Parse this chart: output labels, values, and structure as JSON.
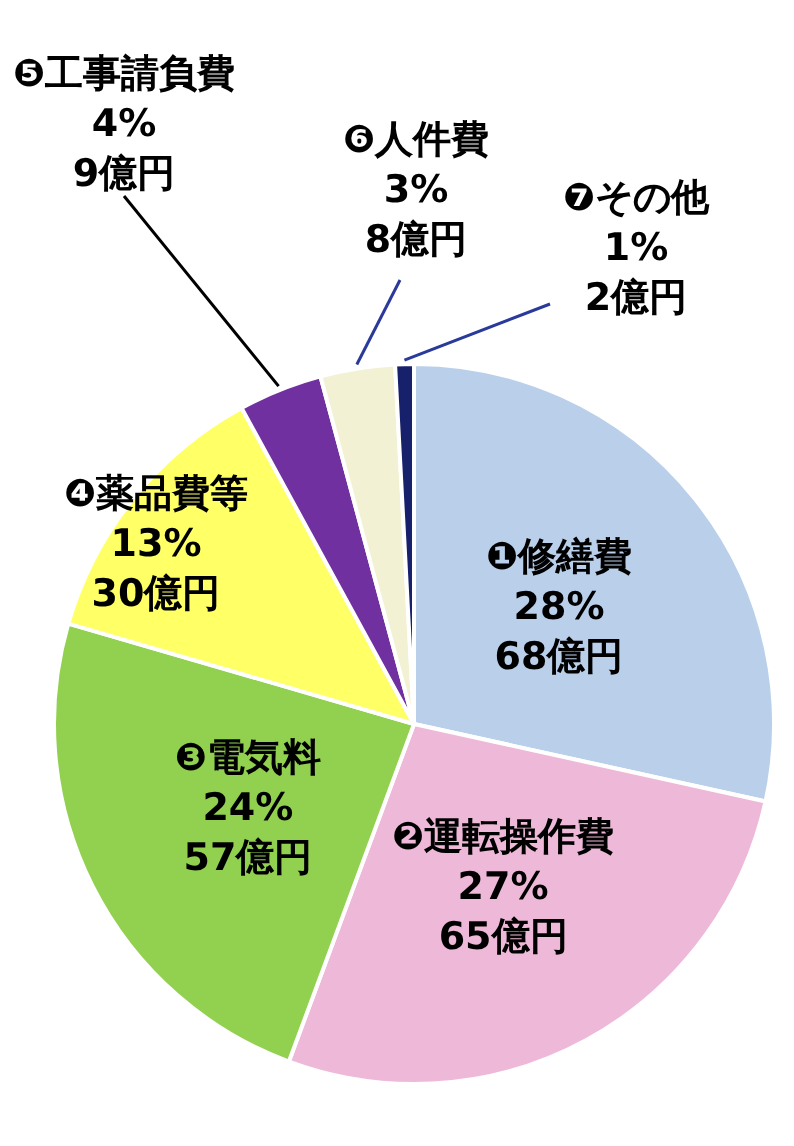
{
  "chart_data": {
    "type": "pie",
    "categories": [
      "❶修繕費",
      "❷運転操作費",
      "❸電気料",
      "❹薬品費等",
      "❺工事請負費",
      "❻人件費",
      "❼その他"
    ],
    "values": [
      68,
      65,
      57,
      30,
      9,
      8,
      2
    ],
    "value_labels": [
      "28%\n68億円",
      "27%\n65億円",
      "24%\n57億円",
      "13%\n30億円",
      "4%\n9億円",
      "3%\n8億円",
      "1%\n2億円"
    ],
    "colors": [
      "#b9cfea",
      "#eeb9d8",
      "#92d050",
      "#ffff66",
      "#7030a0",
      "#f3f1d3",
      "#17206a"
    ]
  }
}
